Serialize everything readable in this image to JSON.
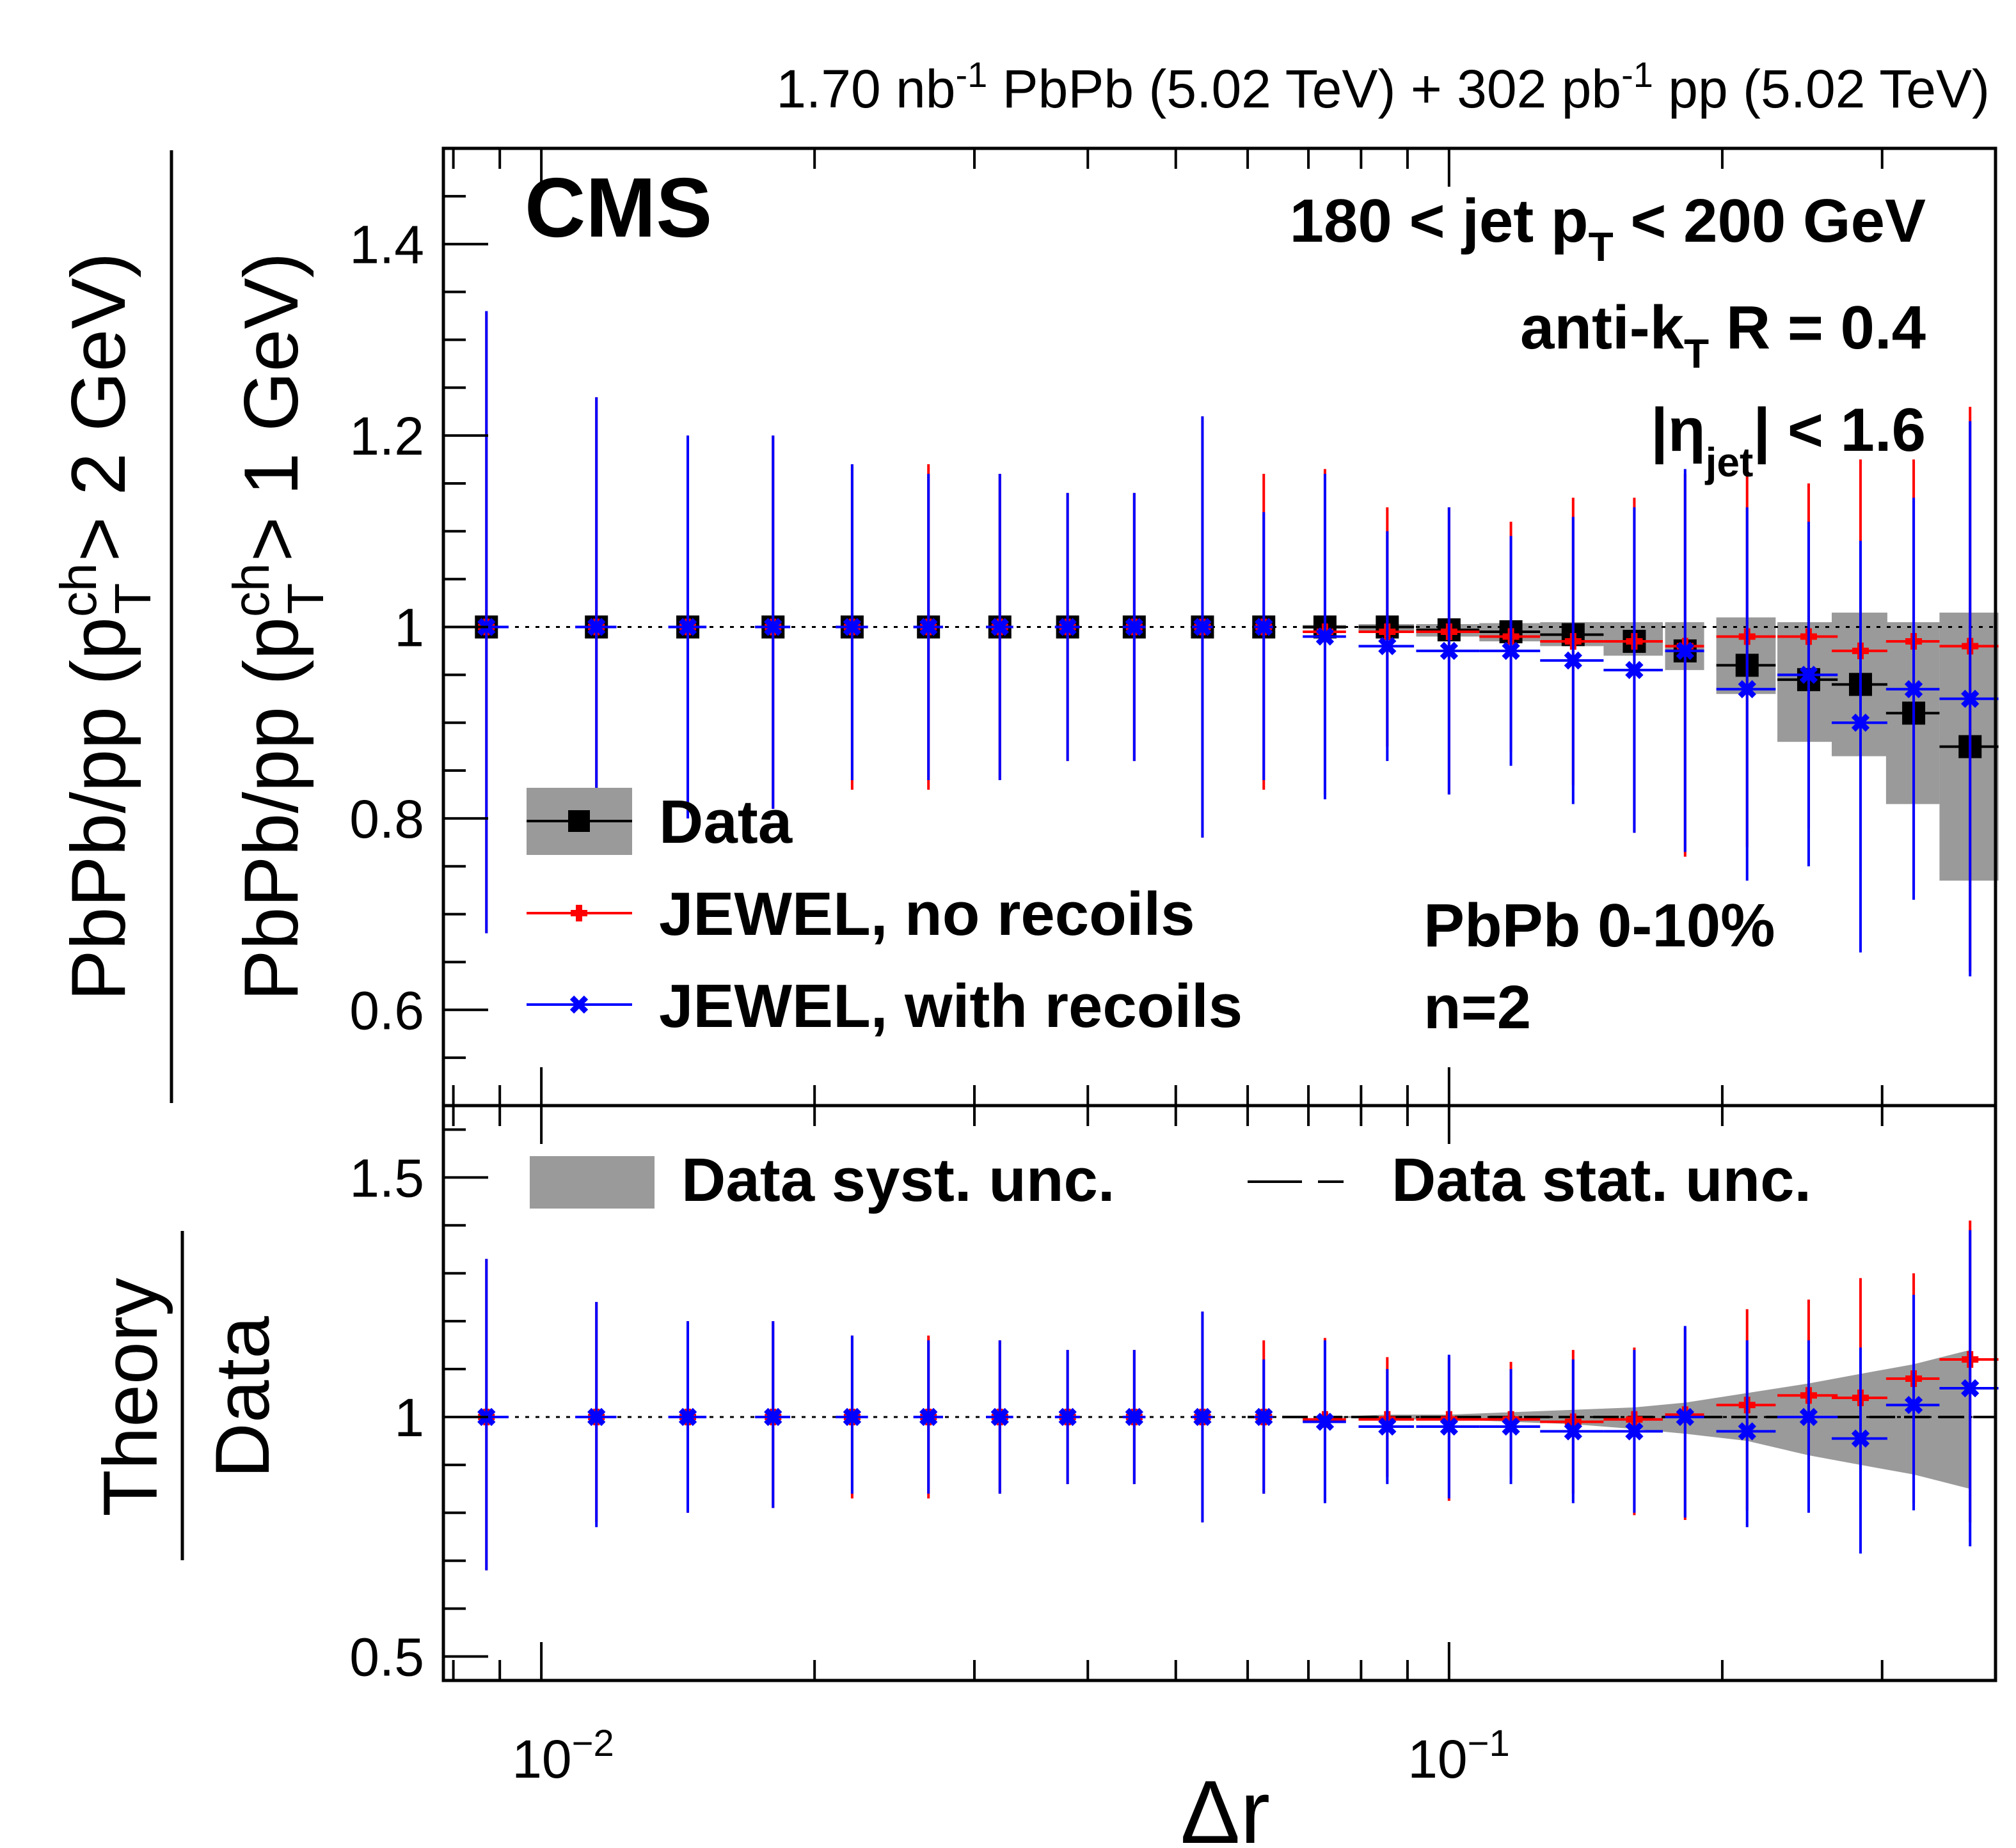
{
  "lumi_label": {
    "lumi1": "1.70 nb",
    "exp1": "-1",
    "mid": " PbPb (5.02 TeV) + 302 pb",
    "exp2": "-1",
    "tail": " pp (5.02 TeV)"
  },
  "cms_label": "CMS",
  "info": {
    "pt_pre": "180 < jet p",
    "pt_sub": "T",
    "pt_post": " < 200 GeV",
    "algo_pre": "anti-k",
    "algo_sub": "T",
    "algo_post": " R = 0.4",
    "eta_pre": "|η",
    "eta_sub": "jet",
    "eta_post": "| < 1.6",
    "centrality": "PbPb 0-10%",
    "n": "n=2"
  },
  "legend": {
    "data": "Data",
    "no_recoils": "JEWEL, no recoils",
    "with_recoils": "JEWEL, with recoils",
    "syst": "Data syst. unc.",
    "stat": "Data stat. unc."
  },
  "axes": {
    "top_ylabel_num_pre": "PbPb/pp (p",
    "top_ylabel_num_sup": "ch",
    "top_ylabel_num_sub": "T",
    "top_ylabel_num_post": " > 2 GeV)",
    "top_ylabel_den_pre": "PbPb/pp (p",
    "top_ylabel_den_sup": "ch",
    "top_ylabel_den_sub": "T",
    "top_ylabel_den_post": " > 1 GeV)",
    "bottom_ylabel_num": "Theory",
    "bottom_ylabel_den": "Data",
    "xlabel": "Δr",
    "xtick_base": "10",
    "xtick_exp_1": "−2",
    "xtick_exp_2": "−1",
    "top_yticks": [
      "0.6",
      "0.8",
      "1",
      "1.2",
      "1.4"
    ],
    "bottom_yticks": [
      "0.5",
      "1",
      "1.5"
    ]
  },
  "chart_data": [
    {
      "type": "scatter",
      "title": "180 < jet pT < 200 GeV, anti-kT R = 0.4, |eta_jet| < 1.6, PbPb 0-10%, n=2",
      "xlabel": "Δr",
      "ylabel": "PbPb/pp (pT ch > 2 GeV) / PbPb/pp (pT ch > 1 GeV)",
      "xscale": "log",
      "xlim": [
        0.0078,
        0.4
      ],
      "ylim": [
        0.5,
        1.5
      ],
      "reference_line": 1,
      "x": [
        0.0087,
        0.0115,
        0.0145,
        0.018,
        0.022,
        0.0267,
        0.032,
        0.038,
        0.045,
        0.0535,
        0.0625,
        0.073,
        0.0855,
        0.1,
        0.117,
        0.137,
        0.16,
        0.182,
        0.213,
        0.249,
        0.284,
        0.325,
        0.375
      ],
      "x_half_width": [
        0.0005,
        0.0006,
        0.0007,
        0.0008,
        0.0009,
        0.001,
        0.0011,
        0.0012,
        0.0013,
        0.0014,
        0.0015,
        0.004,
        0.006,
        0.008,
        0.009,
        0.011,
        0.012,
        0.009,
        0.016,
        0.019,
        0.02,
        0.022,
        0.028
      ],
      "series": [
        {
          "name": "Data",
          "color": "#000000",
          "marker": "square",
          "values": [
            1.0,
            1.0,
            1.0,
            1.0,
            1.0,
            1.0,
            1.0,
            1.0,
            1.0,
            1.0,
            1.0,
            1.0,
            1.0,
            0.997,
            0.995,
            0.992,
            0.985,
            0.975,
            0.96,
            0.945,
            0.94,
            0.91,
            0.875
          ],
          "syst_low": [
            1.0,
            1.0,
            1.0,
            1.0,
            1.0,
            1.0,
            1.0,
            1.0,
            1.0,
            1.0,
            0.998,
            0.998,
            0.995,
            0.99,
            0.985,
            0.98,
            0.97,
            0.955,
            0.93,
            0.88,
            0.865,
            0.815,
            0.735
          ],
          "syst_high": [
            1.0,
            1.0,
            1.0,
            1.0,
            1.0,
            1.0,
            1.0,
            1.0,
            1.0,
            1.0,
            1.002,
            1.002,
            1.003,
            1.003,
            1.004,
            1.005,
            1.005,
            1.005,
            1.01,
            1.005,
            1.015,
            1.005,
            1.015
          ]
        },
        {
          "name": "JEWEL, no recoils",
          "color": "#ff0000",
          "marker": "plus",
          "values": [
            1.0,
            1.0,
            1.0,
            1.0,
            1.0,
            1.0,
            1.0,
            1.0,
            1.0,
            1.0,
            1.0,
            0.995,
            0.995,
            0.995,
            0.99,
            0.985,
            0.985,
            0.98,
            0.99,
            0.99,
            0.975,
            0.985,
            0.98
          ],
          "err_low": [
            0.32,
            0.22,
            0.2,
            0.19,
            0.17,
            0.17,
            0.16,
            0.14,
            0.14,
            0.22,
            0.17,
            0.17,
            0.12,
            0.17,
            0.12,
            0.15,
            0.2,
            0.22,
            0.22,
            0.2,
            0.23,
            0.26,
            0.34
          ],
          "err_high": [
            0.33,
            0.24,
            0.2,
            0.2,
            0.17,
            0.17,
            0.16,
            0.14,
            0.14,
            0.22,
            0.16,
            0.17,
            0.13,
            0.13,
            0.12,
            0.15,
            0.15,
            0.18,
            0.18,
            0.16,
            0.2,
            0.19,
            0.25
          ]
        },
        {
          "name": "JEWEL, with recoils",
          "color": "#0000ff",
          "marker": "x",
          "values": [
            1.0,
            1.0,
            1.0,
            1.0,
            1.0,
            1.0,
            1.0,
            1.0,
            1.0,
            1.0,
            1.0,
            0.99,
            0.98,
            0.975,
            0.975,
            0.965,
            0.955,
            0.975,
            0.935,
            0.95,
            0.9,
            0.935,
            0.925
          ],
          "err_low": [
            0.32,
            0.23,
            0.2,
            0.19,
            0.16,
            0.16,
            0.16,
            0.14,
            0.14,
            0.22,
            0.16,
            0.17,
            0.12,
            0.15,
            0.12,
            0.15,
            0.17,
            0.21,
            0.2,
            0.2,
            0.24,
            0.22,
            0.29
          ],
          "err_high": [
            0.33,
            0.24,
            0.2,
            0.2,
            0.17,
            0.16,
            0.16,
            0.14,
            0.14,
            0.22,
            0.12,
            0.17,
            0.12,
            0.15,
            0.12,
            0.15,
            0.17,
            0.19,
            0.19,
            0.16,
            0.19,
            0.2,
            0.29
          ]
        }
      ]
    },
    {
      "type": "scatter",
      "title": "Theory / Data",
      "xlabel": "Δr",
      "ylabel": "Theory / Data",
      "xscale": "log",
      "xlim": [
        0.0078,
        0.4
      ],
      "ylim": [
        0.45,
        1.65
      ],
      "reference_line": 1,
      "x": [
        0.0087,
        0.0115,
        0.0145,
        0.018,
        0.022,
        0.0267,
        0.032,
        0.038,
        0.045,
        0.0535,
        0.0625,
        0.073,
        0.0855,
        0.1,
        0.117,
        0.137,
        0.16,
        0.182,
        0.213,
        0.249,
        0.284,
        0.325,
        0.375
      ],
      "x_half_width": [
        0.0005,
        0.0006,
        0.0007,
        0.0008,
        0.0009,
        0.001,
        0.0011,
        0.0012,
        0.0013,
        0.0014,
        0.0015,
        0.004,
        0.006,
        0.008,
        0.009,
        0.011,
        0.012,
        0.009,
        0.016,
        0.019,
        0.02,
        0.022,
        0.028
      ],
      "syst_band_low": [
        1.0,
        1.0,
        1.0,
        1.0,
        1.0,
        1.0,
        1.0,
        1.0,
        1.0,
        1.0,
        1.0,
        1.0,
        0.995,
        0.995,
        0.99,
        0.985,
        0.975,
        0.965,
        0.95,
        0.92,
        0.9,
        0.88,
        0.85
      ],
      "syst_band_high": [
        1.0,
        1.0,
        1.0,
        1.0,
        1.0,
        1.0,
        1.0,
        1.0,
        1.0,
        1.0,
        1.0,
        1.0,
        1.005,
        1.005,
        1.01,
        1.015,
        1.02,
        1.03,
        1.05,
        1.07,
        1.09,
        1.11,
        1.14
      ],
      "series": [
        {
          "name": "JEWEL, no recoils / Data",
          "color": "#ff0000",
          "marker": "plus",
          "values": [
            1.0,
            1.0,
            1.0,
            1.0,
            1.0,
            1.0,
            1.0,
            1.0,
            1.0,
            1.0,
            1.0,
            0.995,
            0.995,
            0.995,
            0.995,
            0.99,
            0.995,
            1.005,
            1.025,
            1.045,
            1.04,
            1.08,
            1.12
          ],
          "err_low": [
            0.32,
            0.22,
            0.2,
            0.19,
            0.17,
            0.17,
            0.16,
            0.14,
            0.14,
            0.22,
            0.16,
            0.17,
            0.12,
            0.17,
            0.12,
            0.15,
            0.2,
            0.22,
            0.22,
            0.2,
            0.23,
            0.26,
            0.34
          ],
          "err_high": [
            0.33,
            0.24,
            0.2,
            0.2,
            0.17,
            0.17,
            0.16,
            0.14,
            0.14,
            0.22,
            0.16,
            0.17,
            0.13,
            0.13,
            0.12,
            0.15,
            0.15,
            0.18,
            0.2,
            0.2,
            0.25,
            0.22,
            0.29
          ]
        },
        {
          "name": "JEWEL, with recoils / Data",
          "color": "#0000ff",
          "marker": "x",
          "values": [
            1.0,
            1.0,
            1.0,
            1.0,
            1.0,
            1.0,
            1.0,
            1.0,
            1.0,
            1.0,
            1.0,
            0.99,
            0.98,
            0.98,
            0.98,
            0.97,
            0.97,
            1.0,
            0.97,
            1.0,
            0.955,
            1.025,
            1.06
          ],
          "err_low": [
            0.32,
            0.23,
            0.2,
            0.19,
            0.16,
            0.16,
            0.16,
            0.14,
            0.14,
            0.22,
            0.16,
            0.17,
            0.12,
            0.15,
            0.12,
            0.15,
            0.17,
            0.21,
            0.2,
            0.2,
            0.24,
            0.22,
            0.33
          ],
          "err_high": [
            0.33,
            0.24,
            0.2,
            0.2,
            0.17,
            0.16,
            0.16,
            0.14,
            0.14,
            0.22,
            0.12,
            0.17,
            0.12,
            0.15,
            0.12,
            0.15,
            0.17,
            0.19,
            0.19,
            0.16,
            0.19,
            0.23,
            0.33
          ]
        }
      ]
    }
  ]
}
